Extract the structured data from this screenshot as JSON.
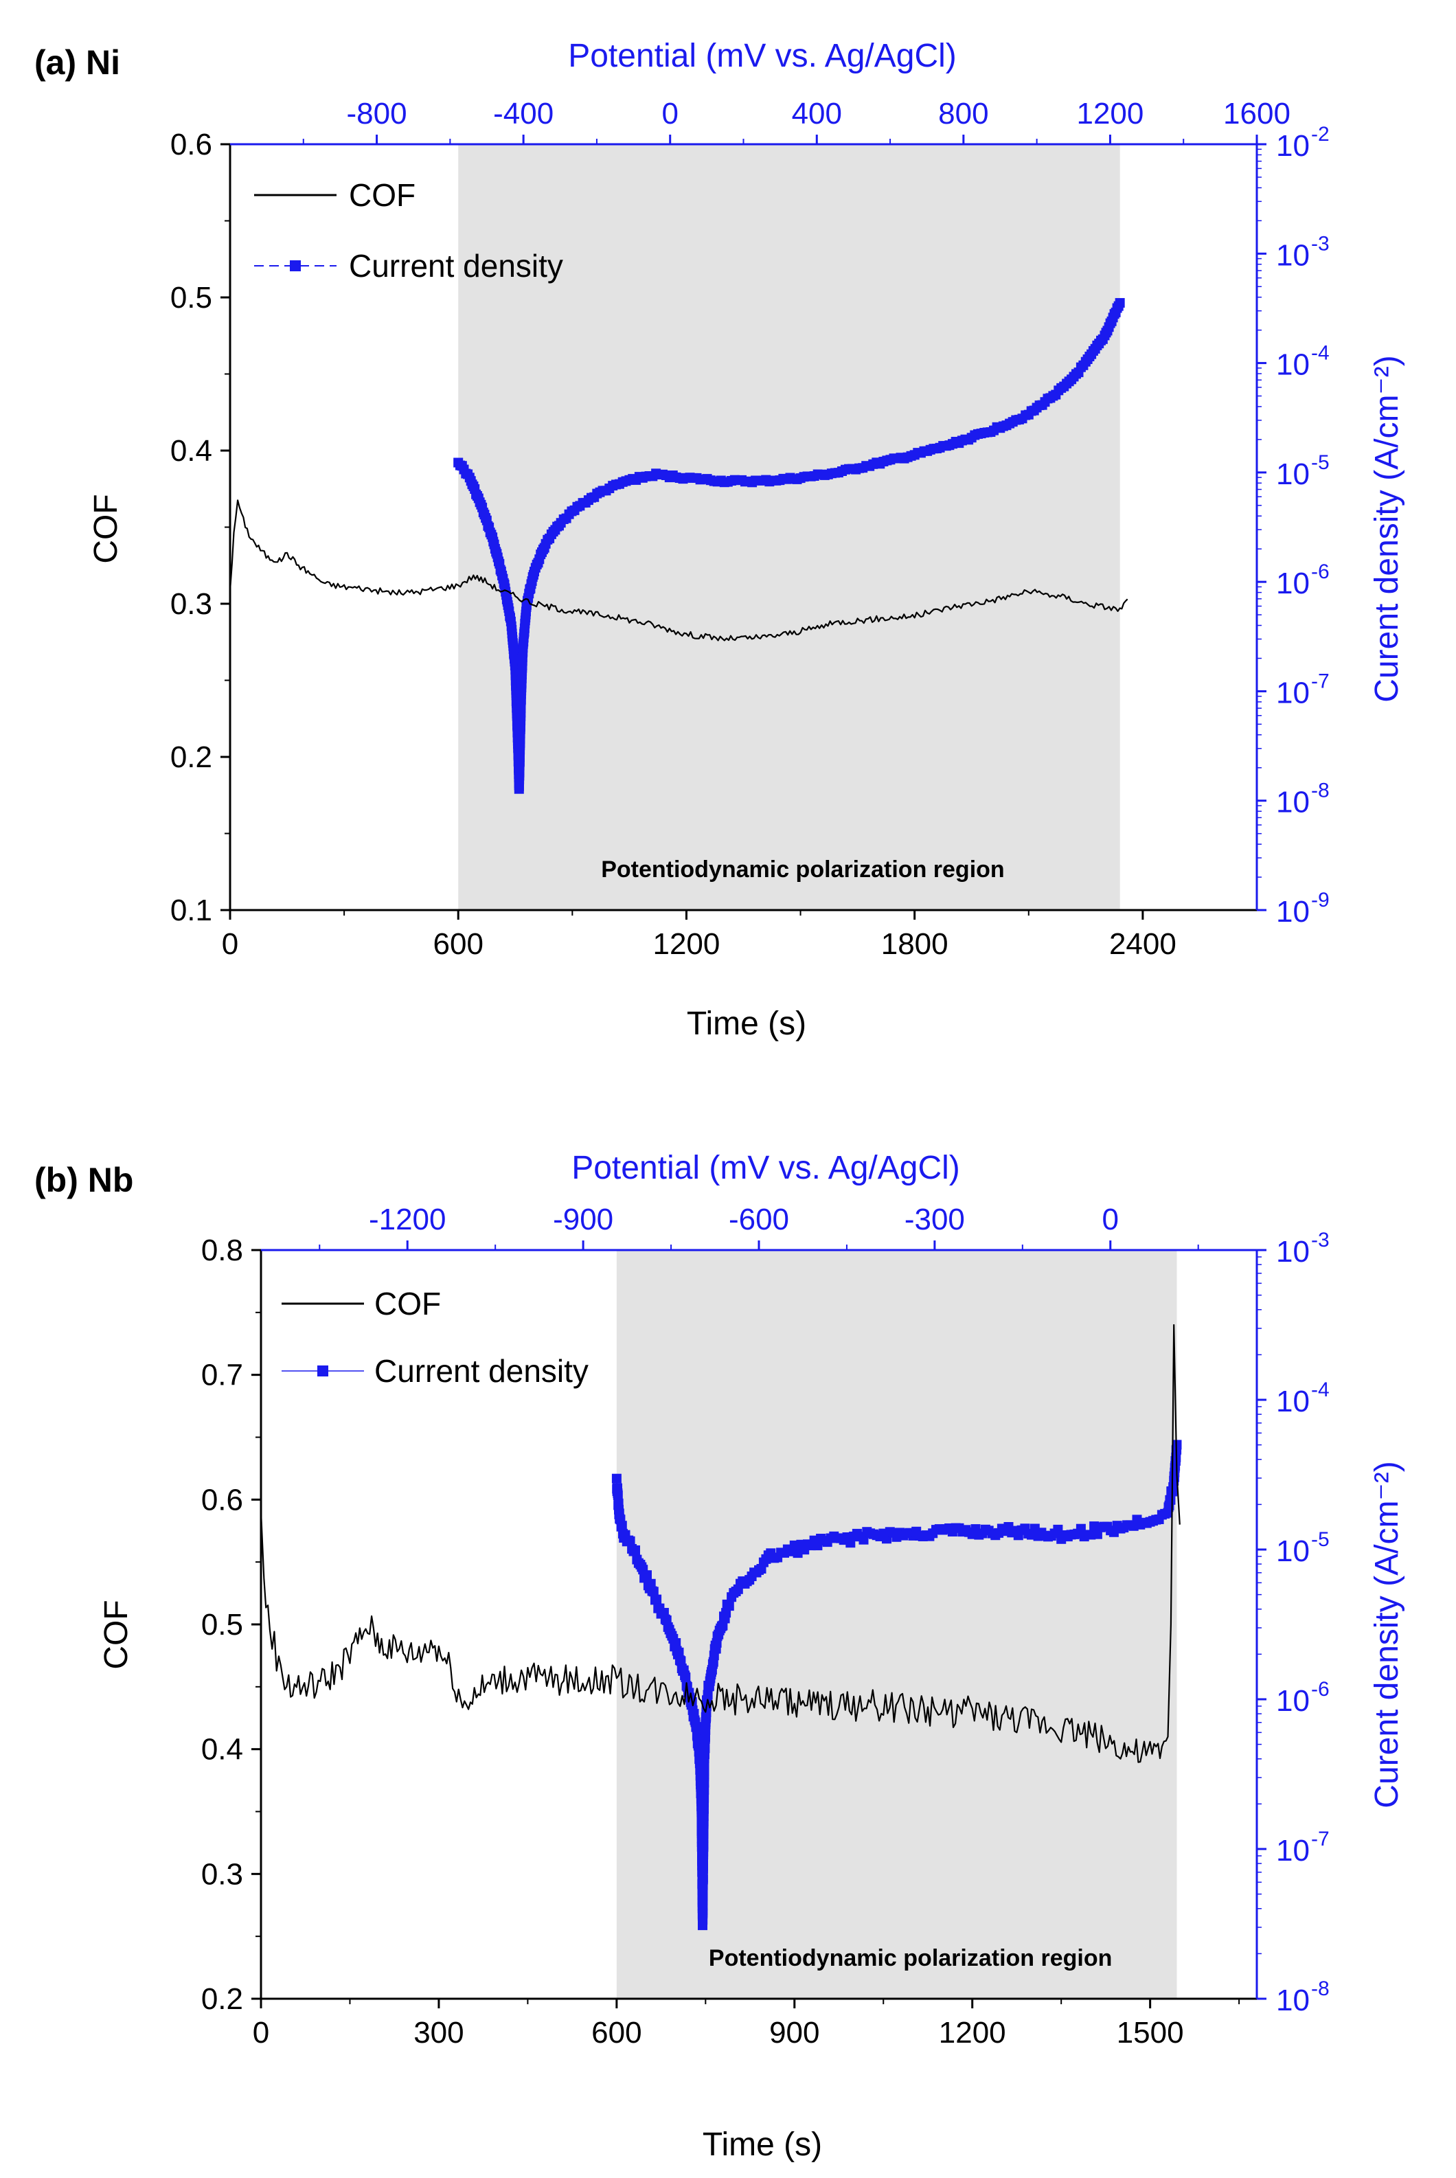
{
  "chart_data": [
    {
      "panel": "(a) Ni",
      "type": "line",
      "title": "(a) Ni",
      "xlabel": "Time (s)",
      "ylabel": "COF",
      "y2label": "Curent density (A/cm⁻²)",
      "x2label": "Potential (mV vs. Ag/AgCl)",
      "xlim": [
        0,
        2700
      ],
      "ylim": [
        0.1,
        0.6
      ],
      "y2lim_log10": [
        -9,
        -2
      ],
      "x2lim": [
        -1200,
        1600
      ],
      "xticks": [
        0,
        600,
        1200,
        1800,
        2400
      ],
      "yticks": [
        "0.1",
        "0.2",
        "0.3",
        "0.4",
        "0.5",
        "0.6"
      ],
      "x2ticks": [
        -800,
        -400,
        0,
        400,
        800,
        1200,
        1600
      ],
      "y2ticks": [
        -9,
        -8,
        -7,
        -6,
        -5,
        -4,
        -3,
        -2
      ],
      "shaded_region": {
        "x": [
          600,
          2340
        ],
        "label": "Potentiodynamic polarization region"
      },
      "legend": [
        "COF",
        "Current density"
      ],
      "legend_position": "top-left",
      "series": [
        {
          "name": "COF",
          "color": "#000000",
          "x": [
            0,
            10,
            20,
            30,
            50,
            70,
            100,
            130,
            150,
            180,
            210,
            250,
            300,
            350,
            400,
            450,
            500,
            550,
            600,
            640,
            670,
            700,
            750,
            800,
            900,
            1000,
            1100,
            1200,
            1300,
            1400,
            1500,
            1600,
            1700,
            1800,
            1900,
            2000,
            2050,
            2100,
            2150,
            2200,
            2250,
            2300,
            2340,
            2360
          ],
          "y": [
            0.31,
            0.345,
            0.368,
            0.358,
            0.345,
            0.338,
            0.33,
            0.328,
            0.333,
            0.325,
            0.32,
            0.313,
            0.311,
            0.31,
            0.308,
            0.307,
            0.308,
            0.31,
            0.312,
            0.318,
            0.315,
            0.31,
            0.305,
            0.3,
            0.295,
            0.292,
            0.287,
            0.28,
            0.277,
            0.278,
            0.282,
            0.288,
            0.29,
            0.292,
            0.298,
            0.302,
            0.305,
            0.308,
            0.306,
            0.304,
            0.3,
            0.298,
            0.296,
            0.303
          ]
        },
        {
          "name": "Current density",
          "color": "#1a1aee",
          "axis": "right-log",
          "x": [
            600,
            630,
            660,
            690,
            720,
            740,
            750,
            755,
            758,
            760,
            762,
            765,
            770,
            780,
            800,
            830,
            870,
            920,
            980,
            1050,
            1120,
            1200,
            1300,
            1400,
            1500,
            1600,
            1700,
            1800,
            1900,
            2000,
            2100,
            2200,
            2250,
            2300,
            2340
          ],
          "log10_y": [
            -4.9,
            -5.05,
            -5.3,
            -5.6,
            -6.0,
            -6.4,
            -6.8,
            -7.3,
            -7.6,
            -7.9,
            -7.6,
            -7.1,
            -6.6,
            -6.2,
            -5.9,
            -5.65,
            -5.45,
            -5.3,
            -5.17,
            -5.07,
            -5.02,
            -5.05,
            -5.08,
            -5.08,
            -5.05,
            -5.0,
            -4.92,
            -4.84,
            -4.74,
            -4.62,
            -4.47,
            -4.2,
            -4.0,
            -3.75,
            -3.45
          ]
        }
      ]
    },
    {
      "panel": "(b) Nb",
      "type": "line",
      "title": "(b) Nb",
      "xlabel": "Time (s)",
      "ylabel": "COF",
      "y2label": "Curent density (A/cm⁻²)",
      "x2label": "Potential (mV vs. Ag/AgCl)",
      "xlim": [
        0,
        1680
      ],
      "ylim": [
        0.2,
        0.8
      ],
      "y2lim_log10": [
        -8,
        -3
      ],
      "x2lim": [
        -1450,
        250
      ],
      "xticks": [
        0,
        300,
        600,
        900,
        1200,
        1500
      ],
      "yticks": [
        "0.2",
        "0.3",
        "0.4",
        "0.5",
        "0.6",
        "0.7",
        "0.8"
      ],
      "x2ticks": [
        -1200,
        -900,
        -600,
        -300,
        0
      ],
      "y2ticks": [
        -8,
        -7,
        -6,
        -5,
        -4,
        -3
      ],
      "shaded_region": {
        "x": [
          600,
          1545
        ],
        "label": "Potentiodynamic polarization region"
      },
      "legend": [
        "COF",
        "Current density"
      ],
      "legend_position": "top-left",
      "series": [
        {
          "name": "COF",
          "color": "#000000",
          "x": [
            0,
            5,
            15,
            30,
            50,
            80,
            110,
            140,
            170,
            180,
            200,
            230,
            260,
            290,
            300,
            320,
            340,
            360,
            400,
            450,
            500,
            550,
            600,
            650,
            700,
            750,
            800,
            850,
            900,
            950,
            1000,
            1050,
            1100,
            1150,
            1200,
            1250,
            1300,
            1350,
            1400,
            1450,
            1480,
            1500,
            1520,
            1530,
            1535,
            1540,
            1545,
            1550
          ],
          "y": [
            0.59,
            0.53,
            0.5,
            0.465,
            0.45,
            0.45,
            0.455,
            0.47,
            0.49,
            0.5,
            0.485,
            0.48,
            0.475,
            0.485,
            0.48,
            0.465,
            0.435,
            0.445,
            0.455,
            0.458,
            0.455,
            0.455,
            0.455,
            0.448,
            0.445,
            0.442,
            0.44,
            0.44,
            0.438,
            0.435,
            0.435,
            0.435,
            0.432,
            0.43,
            0.43,
            0.425,
            0.422,
            0.418,
            0.412,
            0.402,
            0.395,
            0.395,
            0.4,
            0.41,
            0.5,
            0.74,
            0.62,
            0.58
          ]
        },
        {
          "name": "Current density",
          "color": "#1a1aee",
          "axis": "right-log",
          "x": [
            600,
            605,
            612,
            620,
            640,
            660,
            680,
            700,
            715,
            725,
            735,
            740,
            743,
            745,
            748,
            752,
            760,
            770,
            790,
            820,
            860,
            900,
            950,
            1000,
            1050,
            1100,
            1150,
            1200,
            1250,
            1300,
            1350,
            1400,
            1450,
            1500,
            1530,
            1540,
            1545
          ],
          "log10_y": [
            -4.55,
            -4.8,
            -4.9,
            -4.95,
            -5.1,
            -5.28,
            -5.45,
            -5.65,
            -5.85,
            -6.0,
            -6.2,
            -6.4,
            -6.7,
            -7.5,
            -6.4,
            -6.0,
            -5.8,
            -5.6,
            -5.35,
            -5.2,
            -5.05,
            -5.0,
            -4.95,
            -4.92,
            -4.9,
            -4.9,
            -4.88,
            -4.88,
            -4.88,
            -4.88,
            -4.9,
            -4.88,
            -4.85,
            -4.8,
            -4.75,
            -4.55,
            -4.3
          ]
        }
      ]
    }
  ]
}
